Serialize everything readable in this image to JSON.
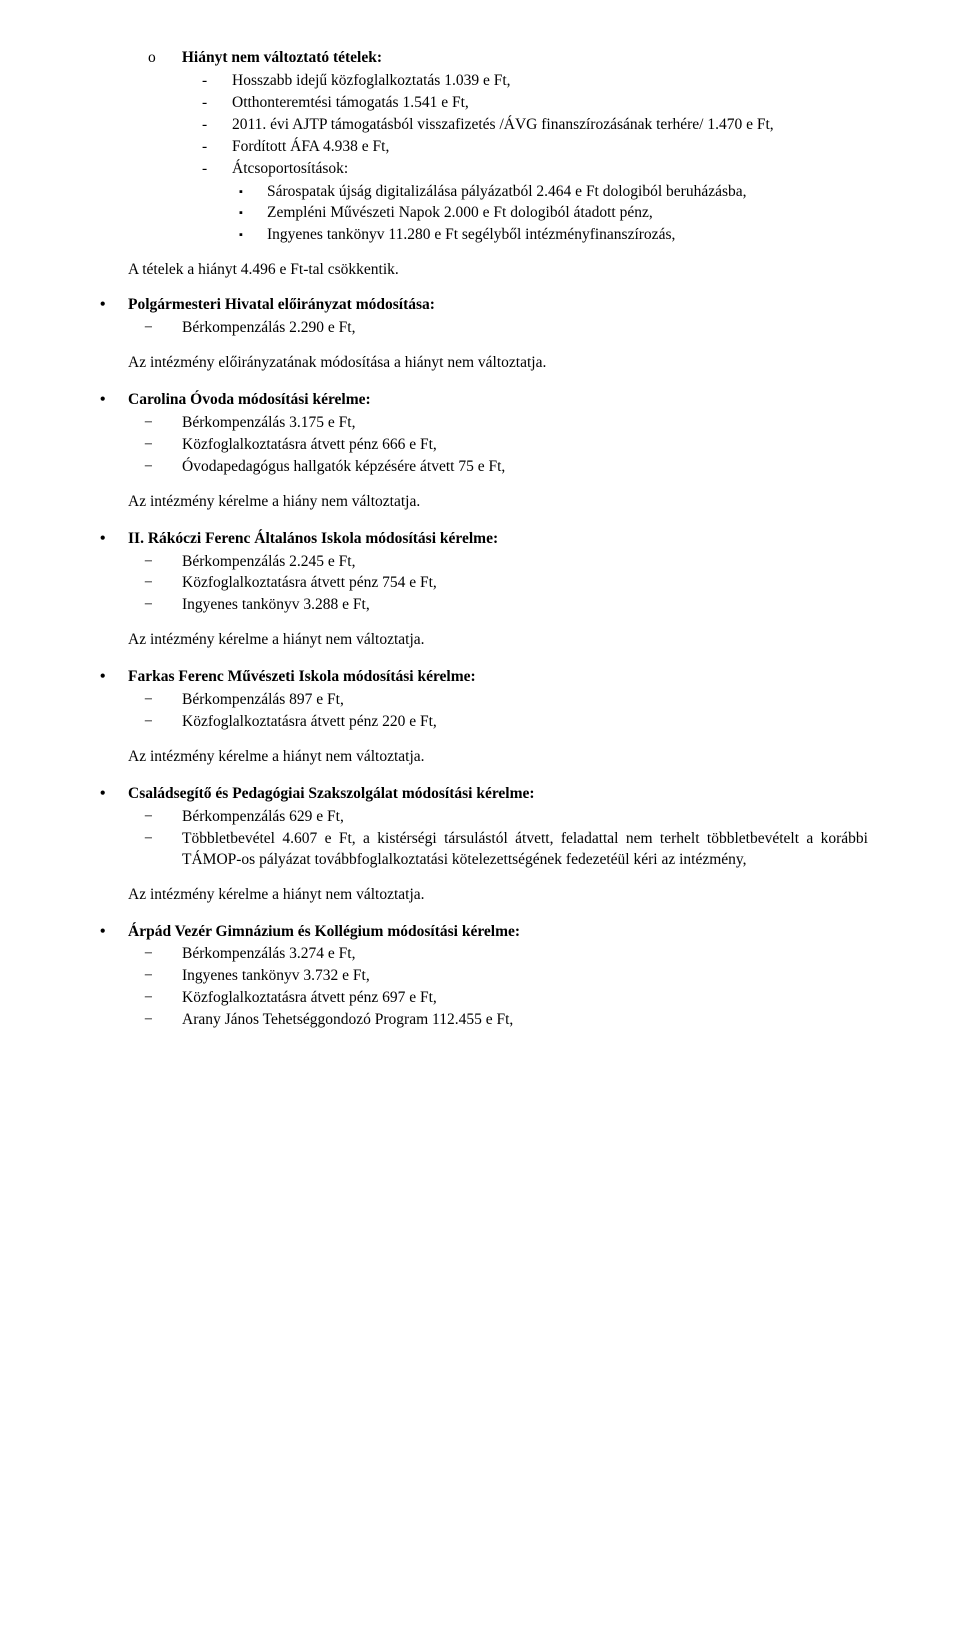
{
  "top": {
    "heading": "Hiányt nem változtató tételek:",
    "items": [
      "Hosszabb idejű közfoglalkoztatás 1.039 e Ft,",
      "Otthonteremtési támogatás 1.541 e Ft,",
      "2011. évi AJTP támogatásból visszafizetés /ÁVG finanszírozásának terhére/ 1.470 e Ft,",
      "Fordított ÁFA 4.938 e Ft,",
      "Átcsoportosítások:"
    ],
    "squares": [
      "Sárospatak újság digitalizálása pályázatból 2.464 e Ft dologiból beruházásba,",
      "Zempléni Művészeti Napok 2.000 e Ft dologiból átadott pénz,",
      "Ingyenes tankönyv 11.280 e Ft segélyből intézményfinanszírozás,"
    ],
    "closing": "A tételek a hiányt  4.496 e Ft-tal csökkentik."
  },
  "sections": [
    {
      "title": "Polgármesteri Hivatal előirányzat módosítása:",
      "items": [
        "Bérkompenzálás 2.290 e Ft,"
      ],
      "after": "Az intézmény előirányzatának módosítása a hiányt nem változtatja."
    },
    {
      "title": "Carolina Óvoda módosítási kérelme:",
      "items": [
        "Bérkompenzálás 3.175 e Ft,",
        "Közfoglalkoztatásra átvett pénz 666 e Ft,",
        "Óvodapedagógus hallgatók képzésére átvett 75 e Ft,"
      ],
      "after": "Az intézmény kérelme a hiány nem változtatja."
    },
    {
      "title": "II. Rákóczi Ferenc Általános Iskola módosítási kérelme:",
      "items": [
        "Bérkompenzálás 2.245 e Ft,",
        "Közfoglalkoztatásra átvett pénz  754 e Ft,",
        "Ingyenes tankönyv 3.288 e Ft,"
      ],
      "after": "Az intézmény kérelme a hiányt nem változtatja."
    },
    {
      "title": "Farkas Ferenc Művészeti Iskola módosítási kérelme:",
      "items": [
        "Bérkompenzálás 897 e Ft,",
        "Közfoglalkoztatásra átvett pénz 220 e Ft,"
      ],
      "after": "Az intézmény kérelme a hiányt nem változtatja."
    },
    {
      "title": "Családsegítő és Pedagógiai Szakszolgálat módosítási kérelme:",
      "items": [
        "Bérkompenzálás 629 e Ft,",
        "Többletbevétel 4.607 e Ft, a kistérségi társulástól átvett, feladattal nem terhelt többletbevételt a korábbi TÁMOP-os pályázat továbbfoglalkoztatási kötelezettségének fedezetéül kéri az intézmény,"
      ],
      "after": "Az intézmény kérelme a hiányt nem változtatja."
    },
    {
      "title": "Árpád Vezér Gimnázium és Kollégium módosítási kérelme:",
      "items": [
        "Bérkompenzálás 3.274 e Ft,",
        "Ingyenes tankönyv 3.732 e Ft,",
        "Közfoglalkoztatásra átvett pénz  697 e Ft,",
        "Arany János Tehetséggondozó Program 112.455 e Ft,"
      ]
    }
  ]
}
